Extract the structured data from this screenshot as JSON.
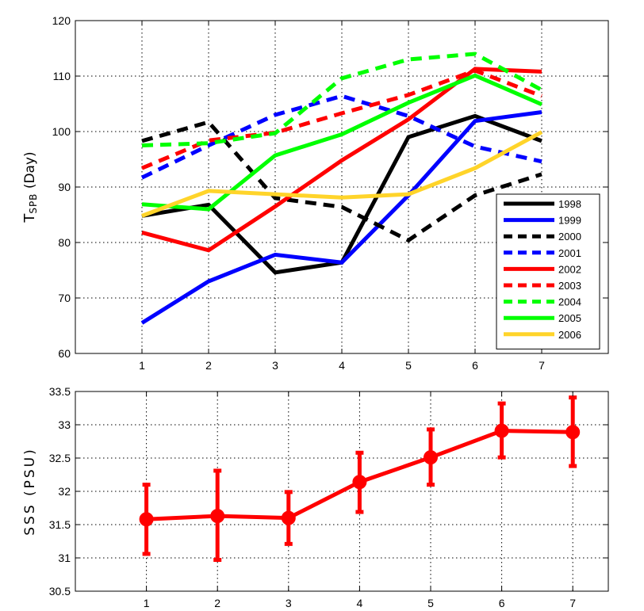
{
  "chart_data": [
    {
      "type": "line",
      "ylabel_main": "T",
      "ylabel_sub": "SPB",
      "ylabel_rest": " (Day)",
      "xlim": [
        0,
        8
      ],
      "ylim": [
        60,
        120
      ],
      "xticks": [
        1,
        2,
        3,
        4,
        5,
        6,
        7
      ],
      "yticks": [
        60,
        70,
        80,
        90,
        100,
        110,
        120
      ],
      "grid": true,
      "legend_position": "lower-right",
      "x": [
        1,
        2,
        3,
        4,
        5,
        6,
        7
      ],
      "series": [
        {
          "name": "1998",
          "values": [
            84.8,
            86.8,
            74.6,
            76.4,
            99.0,
            102.8,
            98.3
          ],
          "color": "#000000",
          "style": "solid"
        },
        {
          "name": "1999",
          "values": [
            65.5,
            73.0,
            77.8,
            76.4,
            88.5,
            101.9,
            103.5
          ],
          "color": "#0000ff",
          "style": "solid"
        },
        {
          "name": "2000",
          "values": [
            98.3,
            101.7,
            88.0,
            86.4,
            80.4,
            88.5,
            92.3
          ],
          "color": "#000000",
          "style": "dashed"
        },
        {
          "name": "2001",
          "values": [
            91.7,
            97.5,
            103.0,
            106.4,
            102.8,
            97.3,
            94.6
          ],
          "color": "#0000ff",
          "style": "dashed"
        },
        {
          "name": "2002",
          "values": [
            81.8,
            78.6,
            86.5,
            94.8,
            102.2,
            111.3,
            110.8
          ],
          "color": "#ff0000",
          "style": "solid"
        },
        {
          "name": "2003",
          "values": [
            93.4,
            98.4,
            99.8,
            103.3,
            106.6,
            111.0,
            106.4
          ],
          "color": "#ff0000",
          "style": "dashed"
        },
        {
          "name": "2004",
          "values": [
            97.5,
            97.9,
            99.7,
            109.6,
            113.0,
            114.0,
            107.5
          ],
          "color": "#00ff00",
          "style": "dashed"
        },
        {
          "name": "2005",
          "values": [
            86.9,
            86.0,
            95.7,
            99.5,
            105.2,
            110.1,
            104.9
          ],
          "color": "#00ff00",
          "style": "solid"
        },
        {
          "name": "2006",
          "values": [
            84.8,
            89.3,
            88.7,
            88.1,
            88.7,
            93.4,
            99.9
          ],
          "color": "#ffd42a",
          "style": "solid"
        }
      ]
    },
    {
      "type": "line",
      "ylabel": "SSS (PSU)",
      "xlim": [
        0,
        7.5
      ],
      "ylim": [
        30.5,
        33.5
      ],
      "xticks": [
        1,
        2,
        3,
        4,
        5,
        6,
        7
      ],
      "yticks": [
        30.5,
        31,
        31.5,
        32,
        32.5,
        33,
        33.5
      ],
      "grid": true,
      "x": [
        1,
        2,
        3,
        4,
        5,
        6,
        7
      ],
      "series": [
        {
          "values": [
            31.58,
            31.63,
            31.6,
            32.14,
            32.51,
            32.91,
            32.89
          ],
          "err_low": [
            31.06,
            30.97,
            31.21,
            31.69,
            32.1,
            32.51,
            32.38
          ],
          "err_high": [
            32.1,
            32.31,
            31.99,
            32.58,
            32.93,
            33.32,
            33.41
          ],
          "color": "#ff0000",
          "marker": "circle",
          "errorbars": true
        }
      ]
    }
  ]
}
